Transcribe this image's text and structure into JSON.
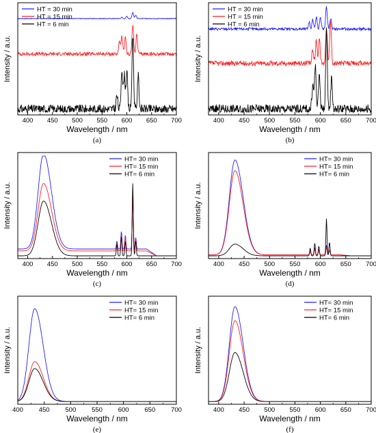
{
  "chart_data": [
    {
      "panel": "(a)",
      "type": "line",
      "xlabel": "Wavelength / nm",
      "ylabel": "Intensity / a.u.",
      "xlim": [
        380,
        700
      ],
      "xticks": [
        400,
        450,
        500,
        550,
        600,
        650,
        700
      ],
      "yticks_shown": false,
      "stacked_with_offsets": true,
      "legend_position": "top-left",
      "series": [
        {
          "name": "HT = 30 min",
          "color": "#1f1fff",
          "level": 0.06,
          "base": 0.9,
          "peaks": [
            [
              590,
              0.22
            ],
            [
              600,
              0.35
            ],
            [
              612,
              1.0
            ],
            [
              618,
              0.55
            ]
          ]
        },
        {
          "name": "HT = 15 min",
          "color": "#ff1f1f",
          "level": 0.28,
          "base": 0.56,
          "peaks": [
            [
              585,
              0.4
            ],
            [
              590,
              0.6
            ],
            [
              597,
              0.55
            ],
            [
              612,
              1.0
            ],
            [
              620,
              0.65
            ]
          ]
        },
        {
          "name": "HT = 6 min",
          "color": "#000000",
          "level": 0.72,
          "base": 0.03,
          "peaks": [
            [
              580,
              0.18
            ],
            [
              590,
              0.55
            ],
            [
              595,
              0.45
            ],
            [
              600,
              0.5
            ],
            [
              612,
              1.0
            ],
            [
              623,
              0.45
            ]
          ]
        }
      ]
    },
    {
      "panel": "(b)",
      "type": "line",
      "xlabel": "Wavelength / nm",
      "ylabel": "Intensity / a.u.",
      "xlim": [
        380,
        700
      ],
      "xticks": [
        400,
        450,
        500,
        550,
        600,
        650,
        700
      ],
      "yticks_shown": false,
      "stacked_with_offsets": true,
      "legend_position": "top-left",
      "series": [
        {
          "name": "HT = 30 min",
          "color": "#1f1fff",
          "level": 0.22,
          "base": 0.8,
          "peaks": [
            [
              578,
              0.3
            ],
            [
              585,
              0.4
            ],
            [
              592,
              0.55
            ],
            [
              600,
              0.5
            ],
            [
              612,
              1.0
            ],
            [
              620,
              0.45
            ]
          ]
        },
        {
          "name": "HT = 15 min",
          "color": "#ff1f1f",
          "level": 0.4,
          "base": 0.47,
          "peaks": [
            [
              585,
              0.35
            ],
            [
              592,
              0.55
            ],
            [
              598,
              0.6
            ],
            [
              612,
              0.9
            ],
            [
              620,
              1.0
            ]
          ]
        },
        {
          "name": "HT = 6 min",
          "color": "#000000",
          "level": 0.75,
          "base": 0.03,
          "peaks": [
            [
              585,
              0.3
            ],
            [
              590,
              0.55
            ],
            [
              598,
              0.45
            ],
            [
              612,
              1.0
            ],
            [
              622,
              0.4
            ]
          ]
        }
      ]
    },
    {
      "panel": "(c)",
      "type": "line",
      "xlabel": "Wavelength / nm",
      "ylabel": "Intensity / a.u.",
      "xlim": [
        380,
        700
      ],
      "xticks": [
        400,
        450,
        500,
        550,
        600,
        650,
        700
      ],
      "yticks_shown": false,
      "legend_position": "top-right",
      "series": [
        {
          "name": "HT= 30 min",
          "color": "#1f1fff",
          "band": 0.97,
          "tail": 0.07,
          "peaks": [
            [
              580,
              0.08
            ],
            [
              589,
              0.18
            ],
            [
              597,
              0.14
            ],
            [
              612,
              0.52
            ],
            [
              618,
              0.12
            ]
          ]
        },
        {
          "name": "HT= 15 min",
          "color": "#ff1f1f",
          "band": 0.69,
          "tail": 0.05,
          "peaks": [
            [
              580,
              0.08
            ],
            [
              589,
              0.16
            ],
            [
              597,
              0.14
            ],
            [
              612,
              0.55
            ],
            [
              618,
              0.13
            ]
          ]
        },
        {
          "name": "HT= 6 min",
          "color": "#000000",
          "band": 0.56,
          "tail": 0.0,
          "peaks": [
            [
              580,
              0.12
            ],
            [
              589,
              0.2
            ],
            [
              597,
              0.15
            ],
            [
              612,
              0.74
            ],
            [
              618,
              0.16
            ]
          ]
        }
      ]
    },
    {
      "panel": "(d)",
      "type": "line",
      "xlabel": "Wavelength / nm",
      "ylabel": "Intensity / a.u.",
      "xlim": [
        380,
        700
      ],
      "xticks": [
        400,
        450,
        500,
        550,
        600,
        650,
        700
      ],
      "yticks_shown": false,
      "legend_position": "top-right",
      "series": [
        {
          "name": "HT= 30 min",
          "color": "#1f1fff",
          "band": 0.97,
          "tail": 0.01,
          "peaks": [
            [
              580,
              0.04
            ],
            [
              589,
              0.07
            ],
            [
              597,
              0.05
            ],
            [
              612,
              0.1
            ],
            [
              618,
              0.05
            ]
          ]
        },
        {
          "name": "HT= 15 min",
          "color": "#ff1f1f",
          "band": 0.86,
          "tail": 0.01,
          "peaks": [
            [
              580,
              0.04
            ],
            [
              589,
              0.06
            ],
            [
              597,
              0.05
            ],
            [
              612,
              0.08
            ],
            [
              618,
              0.05
            ]
          ]
        },
        {
          "name": "HT= 6 min",
          "color": "#000000",
          "band": 0.12,
          "tail": 0.0,
          "peaks": [
            [
              580,
              0.08
            ],
            [
              589,
              0.13
            ],
            [
              597,
              0.1
            ],
            [
              612,
              0.38
            ],
            [
              618,
              0.14
            ]
          ]
        }
      ]
    },
    {
      "panel": "(e)",
      "type": "line",
      "xlabel": "Wavelength / nm",
      "ylabel": "Intensity / a.u.",
      "xlim": [
        400,
        700
      ],
      "xticks": [
        400,
        450,
        500,
        550,
        600,
        650,
        700
      ],
      "yticks_shown": false,
      "legend_position": "top-right",
      "series": [
        {
          "name": "HT= 30 min",
          "color": "#1f1fff",
          "band": 0.93,
          "tail": 0.0,
          "peaks": []
        },
        {
          "name": "HT= 15 min",
          "color": "#ff1f1f",
          "band": 0.4,
          "tail": 0.0,
          "peaks": []
        },
        {
          "name": "HT= 6 min",
          "color": "#000000",
          "band": 0.33,
          "tail": 0.0,
          "peaks": []
        }
      ]
    },
    {
      "panel": "(f)",
      "type": "line",
      "xlabel": "Wavelength / nm",
      "ylabel": "Intensity / a.u.",
      "xlim": [
        380,
        700
      ],
      "xticks": [
        400,
        450,
        500,
        550,
        600,
        650,
        700
      ],
      "yticks_shown": false,
      "legend_position": "top-right",
      "series": [
        {
          "name": "HT= 30 min",
          "color": "#1f1fff",
          "band": 0.95,
          "tail": 0.0,
          "peaks": []
        },
        {
          "name": "HT= 15 min",
          "color": "#ff1f1f",
          "band": 0.81,
          "tail": 0.0,
          "peaks": []
        },
        {
          "name": "HT= 6 min",
          "color": "#000000",
          "band": 0.49,
          "tail": 0.0,
          "peaks": []
        }
      ]
    }
  ]
}
